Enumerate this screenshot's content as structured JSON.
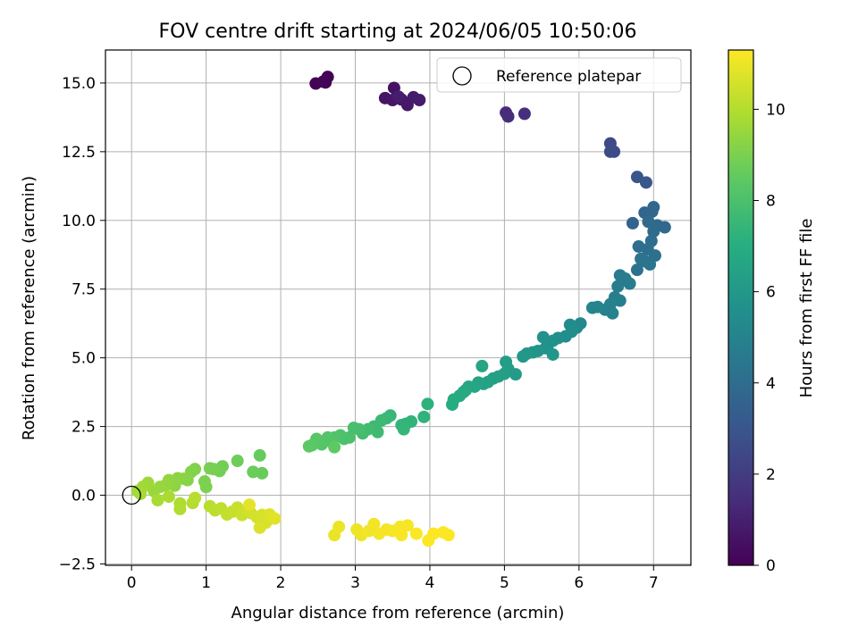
{
  "chart_data": {
    "type": "scatter",
    "title": "FOV centre drift starting at 2024/06/05 10:50:06",
    "xlabel": "Angular distance from reference (arcmin)",
    "ylabel": "Rotation from reference (arcmin)",
    "xlim": [
      -0.35,
      7.5
    ],
    "ylim": [
      -2.55,
      16.2
    ],
    "x_ticks": [
      0,
      1,
      2,
      3,
      4,
      5,
      6,
      7
    ],
    "x_tick_labels": [
      "0",
      "1",
      "2",
      "3",
      "4",
      "5",
      "6",
      "7"
    ],
    "y_ticks": [
      -2.5,
      0,
      2.5,
      5,
      7.5,
      10,
      12.5,
      15
    ],
    "y_tick_labels": [
      "−2.5",
      "0.0",
      "2.5",
      "5.0",
      "7.5",
      "10.0",
      "12.5",
      "15.0"
    ],
    "grid": true,
    "legend": {
      "position": "top-right",
      "entries": [
        "Reference platepar"
      ]
    },
    "reference_point": {
      "x": 0,
      "y": 0
    },
    "colorbar": {
      "label": "Hours from first FF file",
      "range": [
        0,
        11.3
      ],
      "ticks": [
        0,
        2,
        4,
        6,
        8,
        10
      ],
      "tick_labels": [
        "0",
        "2",
        "4",
        "6",
        "8",
        "10"
      ],
      "colormap": "viridis"
    },
    "points": [
      [
        2.47,
        14.98,
        0.02
      ],
      [
        2.6,
        15.02,
        0.05
      ],
      [
        2.63,
        15.22,
        0.08
      ],
      [
        2.57,
        15.05,
        0.11
      ],
      [
        3.52,
        14.82,
        0.55
      ],
      [
        3.4,
        14.45,
        0.6
      ],
      [
        3.5,
        14.38,
        0.65
      ],
      [
        3.62,
        14.4,
        0.7
      ],
      [
        3.7,
        14.2,
        0.75
      ],
      [
        3.78,
        14.48,
        0.8
      ],
      [
        3.86,
        14.38,
        0.85
      ],
      [
        3.58,
        14.5,
        0.9
      ],
      [
        5.02,
        13.92,
        1.4
      ],
      [
        5.05,
        13.78,
        1.45
      ],
      [
        5.27,
        13.88,
        1.5
      ],
      [
        6.42,
        12.8,
        2.5
      ],
      [
        6.42,
        12.5,
        2.55
      ],
      [
        6.47,
        12.5,
        2.6
      ],
      [
        6.78,
        11.58,
        3.0
      ],
      [
        6.9,
        11.38,
        3.05
      ],
      [
        6.72,
        9.9,
        3.6
      ],
      [
        6.88,
        10.28,
        3.65
      ],
      [
        6.98,
        10.32,
        3.7
      ],
      [
        7.0,
        10.48,
        3.75
      ],
      [
        7.05,
        9.82,
        3.8
      ],
      [
        7.15,
        9.75,
        3.85
      ],
      [
        6.93,
        9.95,
        3.9
      ],
      [
        7.0,
        9.6,
        3.95
      ],
      [
        6.97,
        9.25,
        4.0
      ],
      [
        6.8,
        9.05,
        4.05
      ],
      [
        6.92,
        8.95,
        4.1
      ],
      [
        7.02,
        8.72,
        4.15
      ],
      [
        6.9,
        8.5,
        4.2
      ],
      [
        6.78,
        8.2,
        4.25
      ],
      [
        6.83,
        8.6,
        4.3
      ],
      [
        6.95,
        8.4,
        4.35
      ],
      [
        6.55,
        8.0,
        4.6
      ],
      [
        6.62,
        7.88,
        4.65
      ],
      [
        6.68,
        7.7,
        4.7
      ],
      [
        6.52,
        7.6,
        4.75
      ],
      [
        6.48,
        7.2,
        4.8
      ],
      [
        6.55,
        7.08,
        4.85
      ],
      [
        6.42,
        6.95,
        4.9
      ],
      [
        6.35,
        6.75,
        4.95
      ],
      [
        6.45,
        6.62,
        5.0
      ],
      [
        6.25,
        6.85,
        5.05
      ],
      [
        6.18,
        6.82,
        5.1
      ],
      [
        6.02,
        6.25,
        5.3
      ],
      [
        5.97,
        6.1,
        5.35
      ],
      [
        5.88,
        6.2,
        5.4
      ],
      [
        5.9,
        5.95,
        5.45
      ],
      [
        5.82,
        5.78,
        5.5
      ],
      [
        5.72,
        5.72,
        5.55
      ],
      [
        5.65,
        5.62,
        5.6
      ],
      [
        5.58,
        5.45,
        5.65
      ],
      [
        5.52,
        5.75,
        5.7
      ],
      [
        5.55,
        5.35,
        5.75
      ],
      [
        5.45,
        5.25,
        5.8
      ],
      [
        5.38,
        5.2,
        5.85
      ],
      [
        5.65,
        5.12,
        5.9
      ],
      [
        5.3,
        5.15,
        5.95
      ],
      [
        5.25,
        5.05,
        6.0
      ],
      [
        5.15,
        4.4,
        6.15
      ],
      [
        5.02,
        4.85,
        6.2
      ],
      [
        5.05,
        4.6,
        6.25
      ],
      [
        5.0,
        4.42,
        6.3
      ],
      [
        4.92,
        4.32,
        6.35
      ],
      [
        4.85,
        4.25,
        6.4
      ],
      [
        4.78,
        4.12,
        6.45
      ],
      [
        4.72,
        4.05,
        6.5
      ],
      [
        4.65,
        4.1,
        6.55
      ],
      [
        4.7,
        4.7,
        6.6
      ],
      [
        4.6,
        3.95,
        6.65
      ],
      [
        4.52,
        3.95,
        6.7
      ],
      [
        4.48,
        3.82,
        6.75
      ],
      [
        4.45,
        3.75,
        6.8
      ],
      [
        4.4,
        3.62,
        6.85
      ],
      [
        4.32,
        3.48,
        6.9
      ],
      [
        4.3,
        3.3,
        6.95
      ],
      [
        3.97,
        3.32,
        7.2
      ],
      [
        3.92,
        2.85,
        7.25
      ],
      [
        3.75,
        2.68,
        7.3
      ],
      [
        3.68,
        2.6,
        7.35
      ],
      [
        3.62,
        2.55,
        7.4
      ],
      [
        3.65,
        2.4,
        7.45
      ],
      [
        3.47,
        2.9,
        7.5
      ],
      [
        3.42,
        2.8,
        7.55
      ],
      [
        3.35,
        2.72,
        7.6
      ],
      [
        3.25,
        2.5,
        7.65
      ],
      [
        3.3,
        2.3,
        7.7
      ],
      [
        3.17,
        2.4,
        7.75
      ],
      [
        3.1,
        2.25,
        7.8
      ],
      [
        3.05,
        2.4,
        7.85
      ],
      [
        2.98,
        2.45,
        7.9
      ],
      [
        2.92,
        2.1,
        7.95
      ],
      [
        2.85,
        2.05,
        8.0
      ],
      [
        2.8,
        2.18,
        8.05
      ],
      [
        2.72,
        2.1,
        8.1
      ],
      [
        2.68,
        1.95,
        8.15
      ],
      [
        2.63,
        2.1,
        8.2
      ],
      [
        2.55,
        1.85,
        8.25
      ],
      [
        2.48,
        2.05,
        8.3
      ],
      [
        2.42,
        1.82,
        8.35
      ],
      [
        2.38,
        1.78,
        8.4
      ],
      [
        2.72,
        1.75,
        8.45
      ],
      [
        1.72,
        1.45,
        8.6
      ],
      [
        1.75,
        0.8,
        8.65
      ],
      [
        1.63,
        0.85,
        8.7
      ],
      [
        1.42,
        1.25,
        8.75
      ],
      [
        1.22,
        1.05,
        8.8
      ],
      [
        1.18,
        0.88,
        8.85
      ],
      [
        1.1,
        0.95,
        8.9
      ],
      [
        1.05,
        0.98,
        8.95
      ],
      [
        0.98,
        0.5,
        9.0
      ],
      [
        1.0,
        0.3,
        9.05
      ],
      [
        0.85,
        0.95,
        9.1
      ],
      [
        0.8,
        0.85,
        9.15
      ],
      [
        0.75,
        0.55,
        9.2
      ],
      [
        0.7,
        0.6,
        9.25
      ],
      [
        0.62,
        0.62,
        9.3
      ],
      [
        0.58,
        0.35,
        9.35
      ],
      [
        0.5,
        0.55,
        9.4
      ],
      [
        0.45,
        0.35,
        9.45
      ],
      [
        0.38,
        0.3,
        9.5
      ],
      [
        0.3,
        0.15,
        9.55
      ],
      [
        0.22,
        0.45,
        9.6
      ],
      [
        0.15,
        0.3,
        9.65
      ],
      [
        0.08,
        0.15,
        9.7
      ],
      [
        0.12,
        0.05,
        9.75
      ],
      [
        0.35,
        -0.18,
        9.8
      ],
      [
        0.5,
        -0.05,
        9.85
      ],
      [
        0.65,
        -0.3,
        9.9
      ],
      [
        0.65,
        -0.5,
        9.95
      ],
      [
        0.82,
        -0.28,
        10.0
      ],
      [
        0.85,
        -0.1,
        10.05
      ],
      [
        1.05,
        -0.4,
        10.1
      ],
      [
        1.12,
        -0.55,
        10.15
      ],
      [
        1.2,
        -0.48,
        10.2
      ],
      [
        1.28,
        -0.7,
        10.25
      ],
      [
        1.35,
        -0.6,
        10.3
      ],
      [
        1.42,
        -0.45,
        10.35
      ],
      [
        1.48,
        -0.72,
        10.4
      ],
      [
        1.55,
        -0.55,
        10.45
      ],
      [
        1.6,
        -0.65,
        10.5
      ],
      [
        1.68,
        -0.8,
        10.55
      ],
      [
        1.75,
        -0.72,
        10.6
      ],
      [
        1.8,
        -1.0,
        10.65
      ],
      [
        1.72,
        -1.18,
        10.7
      ],
      [
        1.85,
        -0.7,
        10.75
      ],
      [
        1.92,
        -0.85,
        10.8
      ],
      [
        1.58,
        -0.35,
        10.85
      ],
      [
        2.72,
        -1.45,
        10.95
      ],
      [
        2.78,
        -1.15,
        11.0
      ],
      [
        3.02,
        -1.25,
        11.02
      ],
      [
        3.08,
        -1.45,
        11.05
      ],
      [
        3.18,
        -1.3,
        11.08
      ],
      [
        3.25,
        -1.05,
        11.1
      ],
      [
        3.32,
        -1.4,
        11.12
      ],
      [
        3.42,
        -1.25,
        11.14
      ],
      [
        3.5,
        -1.3,
        11.16
      ],
      [
        3.6,
        -1.15,
        11.18
      ],
      [
        3.7,
        -1.1,
        11.2
      ],
      [
        3.62,
        -1.45,
        11.22
      ],
      [
        3.82,
        -1.4,
        11.24
      ],
      [
        3.98,
        -1.65,
        11.26
      ],
      [
        4.05,
        -1.4,
        11.27
      ],
      [
        4.18,
        -1.35,
        11.28
      ],
      [
        4.25,
        -1.45,
        11.29
      ]
    ]
  }
}
